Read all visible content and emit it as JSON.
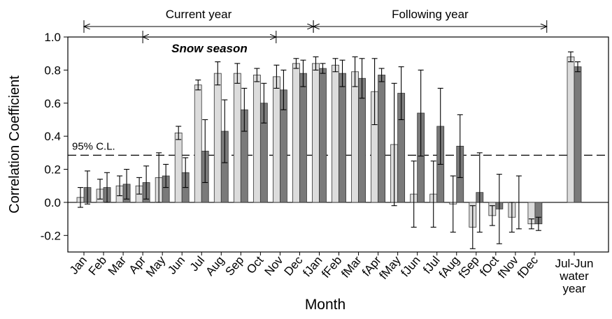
{
  "chart_data": {
    "type": "bar",
    "x_label": "Month",
    "y_label": "Correlation Coefficient",
    "categories": [
      "Jan",
      "Feb",
      "Mar",
      "Apr",
      "May",
      "Jun",
      "Jul",
      "Aug",
      "Sep",
      "Oct",
      "Nov",
      "Dec",
      "fJan",
      "fFeb",
      "fMar",
      "fApr",
      "fMay",
      "fJun",
      "fJul",
      "fAug",
      "fSep",
      "fOct",
      "fNov",
      "fDec",
      null,
      "Jul-Jun water year"
    ],
    "series": [
      {
        "color": "#dcdcdc",
        "values": [
          0.03,
          0.08,
          0.1,
          0.1,
          0.15,
          0.42,
          0.71,
          0.78,
          0.78,
          0.77,
          0.76,
          0.84,
          0.84,
          0.83,
          0.79,
          0.67,
          0.35,
          0.05,
          0.05,
          -0.01,
          -0.15,
          -0.08,
          -0.09,
          -0.13,
          null,
          0.88
        ],
        "errors": [
          0.06,
          0.06,
          0.06,
          0.05,
          0.15,
          0.04,
          0.03,
          0.07,
          0.06,
          0.04,
          0.07,
          0.03,
          0.04,
          0.04,
          0.09,
          0.2,
          0.37,
          0.2,
          0.2,
          0.17,
          0.13,
          0.06,
          0.09,
          0.03,
          null,
          0.03
        ]
      },
      {
        "color": "#7a7a7a",
        "values": [
          0.09,
          0.09,
          0.11,
          0.12,
          0.16,
          0.18,
          0.31,
          0.43,
          0.56,
          0.6,
          0.68,
          0.78,
          0.81,
          0.78,
          0.75,
          0.77,
          0.66,
          0.54,
          0.46,
          0.34,
          0.06,
          -0.04,
          0.0,
          -0.13,
          null,
          0.82
        ],
        "errors": [
          0.1,
          0.09,
          0.09,
          0.1,
          0.07,
          0.09,
          0.19,
          0.19,
          0.13,
          0.12,
          0.12,
          0.08,
          0.03,
          0.08,
          0.12,
          0.04,
          0.16,
          0.26,
          0.23,
          0.19,
          0.24,
          0.21,
          0.16,
          0.04,
          null,
          0.03
        ]
      }
    ],
    "ylim": [
      -0.3,
      1.0
    ],
    "yticks": [
      {
        "value": -0.2,
        "label": "-0.2"
      },
      {
        "value": 0,
        "label": "0.0"
      },
      {
        "value": 0.2,
        "label": "0.2"
      },
      {
        "value": 0.4,
        "label": "0.4"
      },
      {
        "value": 0.6,
        "label": "0.6"
      },
      {
        "value": 0.8,
        "label": "0.8"
      },
      {
        "value": 1,
        "label": "1.0"
      }
    ],
    "reference_line": {
      "value": 0.285,
      "label": "95% C.L."
    },
    "annotations": {
      "current_year": "Current year",
      "following_year": "Following year",
      "snow_season": "Snow season"
    }
  }
}
